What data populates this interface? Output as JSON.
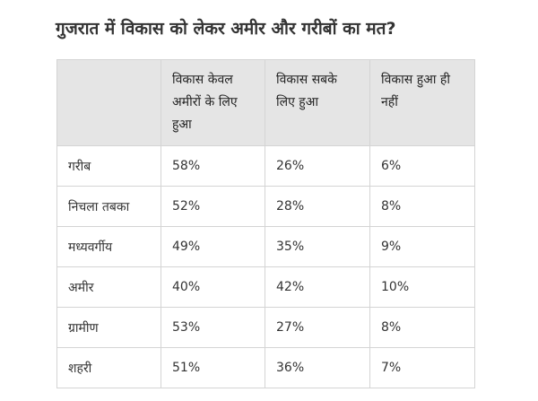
{
  "title": "गुजरात में विकास को लेकर अमीर और गरीबों का मत?",
  "table": {
    "headers": [
      "",
      "विकास केवल अमीरों के लिए हुआ",
      "विकास सबके लिए हुआ",
      "विकास हुआ ही नहीं"
    ],
    "rows": [
      [
        "गरीब",
        "58%",
        "26%",
        "6%"
      ],
      [
        "निचला तबका",
        "52%",
        "28%",
        "8%"
      ],
      [
        "मध्यवर्गीय",
        "49%",
        "35%",
        "9%"
      ],
      [
        "अमीर",
        "40%",
        "42%",
        "10%"
      ],
      [
        "ग्रामीण",
        "53%",
        "27%",
        "8%"
      ],
      [
        "शहरी",
        "51%",
        "36%",
        "7%"
      ]
    ]
  },
  "colors": {
    "header_bg": "#e5e5e5",
    "border": "#d4d4d4",
    "title": "#333333"
  }
}
